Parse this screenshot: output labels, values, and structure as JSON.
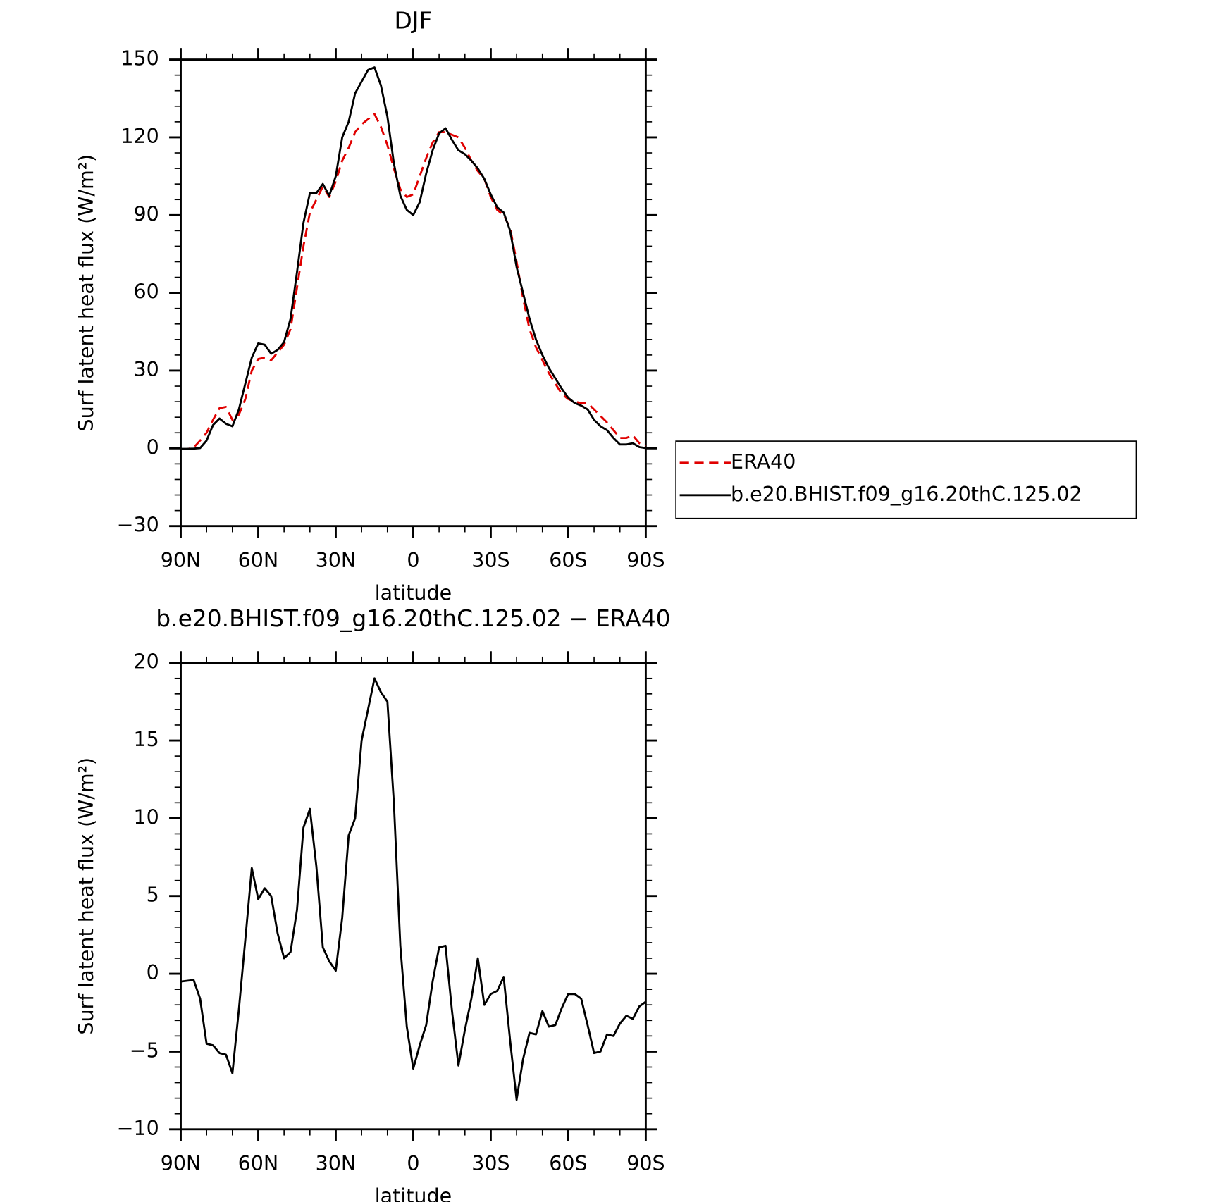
{
  "chart_data": [
    {
      "type": "line",
      "title": "DJF",
      "xlabel": "latitude",
      "ylabel": "Surf latent heat flux (W/m²)",
      "x": [
        90,
        87.5,
        85,
        82.5,
        80,
        77.5,
        75,
        72.5,
        70,
        67.5,
        65,
        62.5,
        60,
        57.5,
        55,
        52.5,
        50,
        47.5,
        45,
        42.5,
        40,
        37.5,
        35,
        32.5,
        30,
        27.5,
        25,
        22.5,
        20,
        17.5,
        15,
        12.5,
        10,
        7.5,
        5,
        2.5,
        0,
        -2.5,
        -5,
        -7.5,
        -10,
        -12.5,
        -15,
        -17.5,
        -20,
        -22.5,
        -25,
        -27.5,
        -30,
        -32.5,
        -35,
        -37.5,
        -40,
        -42.5,
        -45,
        -47.5,
        -50,
        -52.5,
        -55,
        -57.5,
        -60,
        -62.5,
        -65,
        -67.5,
        -70,
        -72.5,
        -75,
        -77.5,
        -80,
        -82.5,
        -85,
        -87.5,
        -90
      ],
      "series": [
        {
          "name": "ERA40",
          "color": "#e00000",
          "line_style": "dashed",
          "values": [
            -0.3,
            -0.3,
            0.3,
            3,
            6,
            11,
            15.5,
            16,
            11,
            13,
            19,
            30,
            34.5,
            35,
            34,
            37,
            40,
            46,
            62,
            78,
            91,
            96,
            101,
            97,
            103,
            111,
            116,
            122,
            125,
            127,
            129,
            124,
            117,
            108,
            100,
            97,
            98,
            105,
            112,
            118,
            122,
            122,
            121,
            120,
            116,
            111,
            107,
            104,
            97,
            92,
            90,
            85,
            72,
            58,
            46,
            39,
            34,
            29,
            25,
            21,
            19,
            18,
            17.5,
            17.5,
            15,
            12.5,
            10,
            7,
            4,
            4,
            5,
            2,
            1
          ]
        },
        {
          "name": "b.e20.BHIST.f09_g16.20thC.125.02",
          "color": "#000000",
          "line_style": "solid",
          "values": [
            -0.2,
            -0.2,
            -0.1,
            0.1,
            3,
            9,
            11.5,
            9.5,
            8.5,
            15,
            25,
            35,
            40.5,
            40,
            36.5,
            38,
            41,
            50,
            68,
            87,
            98.5,
            98.5,
            102,
            97.5,
            105,
            120,
            126,
            137,
            141.5,
            146,
            147,
            140,
            128,
            110,
            97.5,
            92,
            90,
            95,
            106,
            115,
            121.5,
            123.5,
            119,
            115,
            113.5,
            111,
            108,
            104,
            98,
            93,
            91,
            84,
            70,
            60,
            50,
            42,
            36,
            31,
            27,
            23,
            19.5,
            17.5,
            16.5,
            15,
            11,
            8.5,
            7,
            4,
            1.5,
            1.5,
            2,
            0.5,
            0.1
          ]
        }
      ],
      "xlim": [
        90,
        -90
      ],
      "xticks": [
        {
          "value": 90,
          "label": "90N"
        },
        {
          "value": 60,
          "label": "60N"
        },
        {
          "value": 30,
          "label": "30N"
        },
        0,
        {
          "value": -30,
          "label": "30S"
        },
        {
          "value": -60,
          "label": "60S"
        },
        {
          "value": -90,
          "label": "90S"
        }
      ],
      "ylim": [
        -30,
        150
      ],
      "yticks": [
        {
          "value": -30,
          "label": "−30"
        },
        0,
        30,
        60,
        90,
        120,
        150
      ],
      "legend": "right"
    },
    {
      "type": "line",
      "title": "b.e20.BHIST.f09_g16.20thC.125.02 − ERA40",
      "xlabel": "latitude",
      "ylabel": "Surf latent heat flux (W/m²)",
      "x": [
        90,
        87.5,
        85,
        82.5,
        80,
        77.5,
        75,
        72.5,
        70,
        67.5,
        65,
        62.5,
        60,
        57.5,
        55,
        52.5,
        50,
        47.5,
        45,
        42.5,
        40,
        37.5,
        35,
        32.5,
        30,
        27.5,
        25,
        22.5,
        20,
        17.5,
        15,
        12.5,
        10,
        7.5,
        5,
        2.5,
        0,
        -2.5,
        -5,
        -7.5,
        -10,
        -12.5,
        -15,
        -17.5,
        -20,
        -22.5,
        -25,
        -27.5,
        -30,
        -32.5,
        -35,
        -37.5,
        -40,
        -42.5,
        -45,
        -47.5,
        -50,
        -52.5,
        -55,
        -57.5,
        -60,
        -62.5,
        -65,
        -67.5,
        -70,
        -72.5,
        -75,
        -77.5,
        -80,
        -82.5,
        -85,
        -87.5,
        -90
      ],
      "color": "#000000",
      "values": [
        -0.5,
        -0.45,
        -0.4,
        -1.6,
        -4.5,
        -4.6,
        -5.1,
        -5.2,
        -6.4,
        -2.3,
        2.2,
        6.8,
        4.8,
        5.5,
        5.0,
        2.6,
        1.0,
        1.4,
        4.1,
        9.4,
        10.6,
        6.9,
        1.7,
        0.8,
        0.2,
        3.6,
        8.9,
        10.0,
        15.0,
        17.0,
        19.0,
        18.1,
        17.5,
        11.0,
        1.8,
        -3.4,
        -6.1,
        -4.6,
        -3.3,
        -0.5,
        1.7,
        1.8,
        -2.4,
        -5.9,
        -3.6,
        -1.6,
        1.0,
        -2.0,
        -1.3,
        -1.1,
        -0.2,
        -4.3,
        -8.1,
        -5.5,
        -3.8,
        -3.9,
        -2.4,
        -3.4,
        -3.3,
        -2.2,
        -1.3,
        -1.3,
        -1.6,
        -3.3,
        -5.1,
        -5.0,
        -3.9,
        -4.0,
        -3.2,
        -2.7,
        -2.9,
        -2.1,
        -1.8
      ],
      "xlim": [
        90,
        -90
      ],
      "xticks": [
        {
          "value": 90,
          "label": "90N"
        },
        {
          "value": 60,
          "label": "60N"
        },
        {
          "value": 30,
          "label": "30N"
        },
        0,
        {
          "value": -30,
          "label": "30S"
        },
        {
          "value": -60,
          "label": "60S"
        },
        {
          "value": -90,
          "label": "90S"
        }
      ],
      "ylim": [
        -10,
        20
      ],
      "yticks": [
        {
          "value": -10,
          "label": "−10"
        },
        {
          "value": -5,
          "label": "−5"
        },
        0,
        5,
        10,
        15,
        20
      ]
    }
  ]
}
